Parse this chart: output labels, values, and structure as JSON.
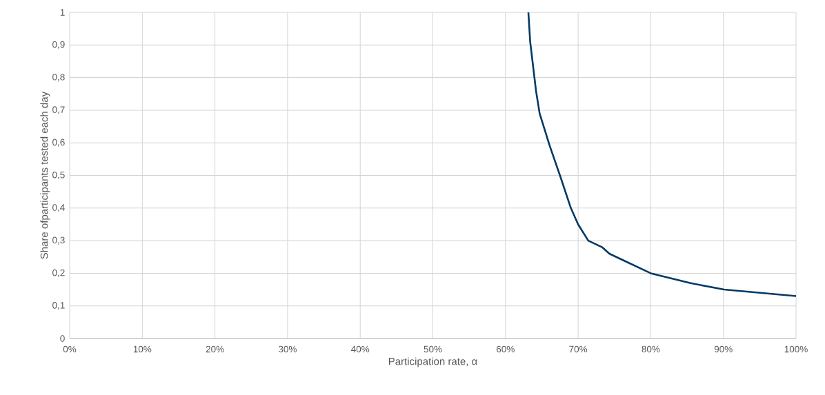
{
  "chart_data": {
    "type": "line",
    "xlabel": "Participation rate, α",
    "ylabel": "Share ofparticipants tested each day",
    "x": [
      63.15,
      63.4,
      64.2,
      64.7,
      66.1,
      67.5,
      69.0,
      70.0,
      71.4,
      73.3,
      74.3,
      76.2,
      80.0,
      85.4,
      90.1,
      100
    ],
    "series": [
      {
        "color": "#003a66",
        "values": [
          1,
          0.91,
          0.76,
          0.69,
          0.59,
          0.5,
          0.4,
          0.35,
          0.3,
          0.28,
          0.26,
          0.24,
          0.2,
          0.17,
          0.15,
          0.13
        ]
      }
    ],
    "xlim": [
      0,
      100
    ],
    "xticks": [
      {
        "value": 0,
        "label": "0%"
      },
      {
        "value": 10,
        "label": "10%"
      },
      {
        "value": 20,
        "label": "20%"
      },
      {
        "value": 30,
        "label": "30%"
      },
      {
        "value": 40,
        "label": "40%"
      },
      {
        "value": 50,
        "label": "50%"
      },
      {
        "value": 60,
        "label": "60%"
      },
      {
        "value": 70,
        "label": "70%"
      },
      {
        "value": 80,
        "label": "80%"
      },
      {
        "value": 90,
        "label": "90%"
      },
      {
        "value": 100,
        "label": "100%"
      }
    ],
    "ylim": [
      0,
      1
    ],
    "yticks": [
      0,
      {
        "value": 0.1,
        "label": "0,1"
      },
      {
        "value": 0.2,
        "label": "0,2"
      },
      {
        "value": 0.3,
        "label": "0,3"
      },
      {
        "value": 0.4,
        "label": "0,4"
      },
      {
        "value": 0.5,
        "label": "0,5"
      },
      {
        "value": 0.6,
        "label": "0,6"
      },
      {
        "value": 0.7,
        "label": "0,7"
      },
      {
        "value": 0.8,
        "label": "0,8"
      },
      {
        "value": 0.9,
        "label": "0,9"
      },
      1
    ],
    "grid": true,
    "legend": false,
    "marker": "none",
    "line_style": "solid"
  }
}
